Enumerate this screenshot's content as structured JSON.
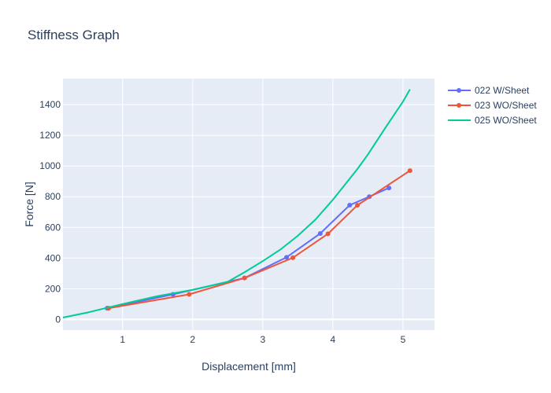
{
  "chart_data": {
    "type": "line",
    "title": "Stiffness Graph",
    "xlabel": "Displacement [mm]",
    "ylabel": "Force [N]",
    "xlim": [
      0.15,
      5.45
    ],
    "ylim": [
      -70,
      1570
    ],
    "x_ticks": [
      1,
      2,
      3,
      4,
      5
    ],
    "y_ticks": [
      0,
      200,
      400,
      600,
      800,
      1000,
      1200,
      1400
    ],
    "grid": true,
    "legend_position": "top-right",
    "series": [
      {
        "name": "022 W/Sheet",
        "color": "#636efa",
        "mode": "lines+markers",
        "x": [
          0.78,
          1.72,
          2.74,
          3.34,
          3.82,
          4.24,
          4.52,
          4.8
        ],
        "y": [
          73,
          163,
          270,
          405,
          560,
          745,
          800,
          857
        ]
      },
      {
        "name": "023 WO/Sheet",
        "color": "#ef553b",
        "mode": "lines+markers",
        "x": [
          0.8,
          1.95,
          2.74,
          3.43,
          3.93,
          4.35,
          5.1
        ],
        "y": [
          73,
          163,
          270,
          402,
          558,
          744,
          970
        ]
      },
      {
        "name": "025 WO/Sheet",
        "color": "#00cc96",
        "mode": "lines",
        "x": [
          0.15,
          0.5,
          1.0,
          1.5,
          2.0,
          2.5,
          2.75,
          3.0,
          3.25,
          3.5,
          3.75,
          4.0,
          4.35,
          4.5,
          4.75,
          5.0,
          5.1
        ],
        "y": [
          12,
          45,
          100,
          152,
          193,
          245,
          310,
          380,
          455,
          545,
          650,
          780,
          980,
          1075,
          1250,
          1420,
          1500
        ]
      }
    ]
  }
}
